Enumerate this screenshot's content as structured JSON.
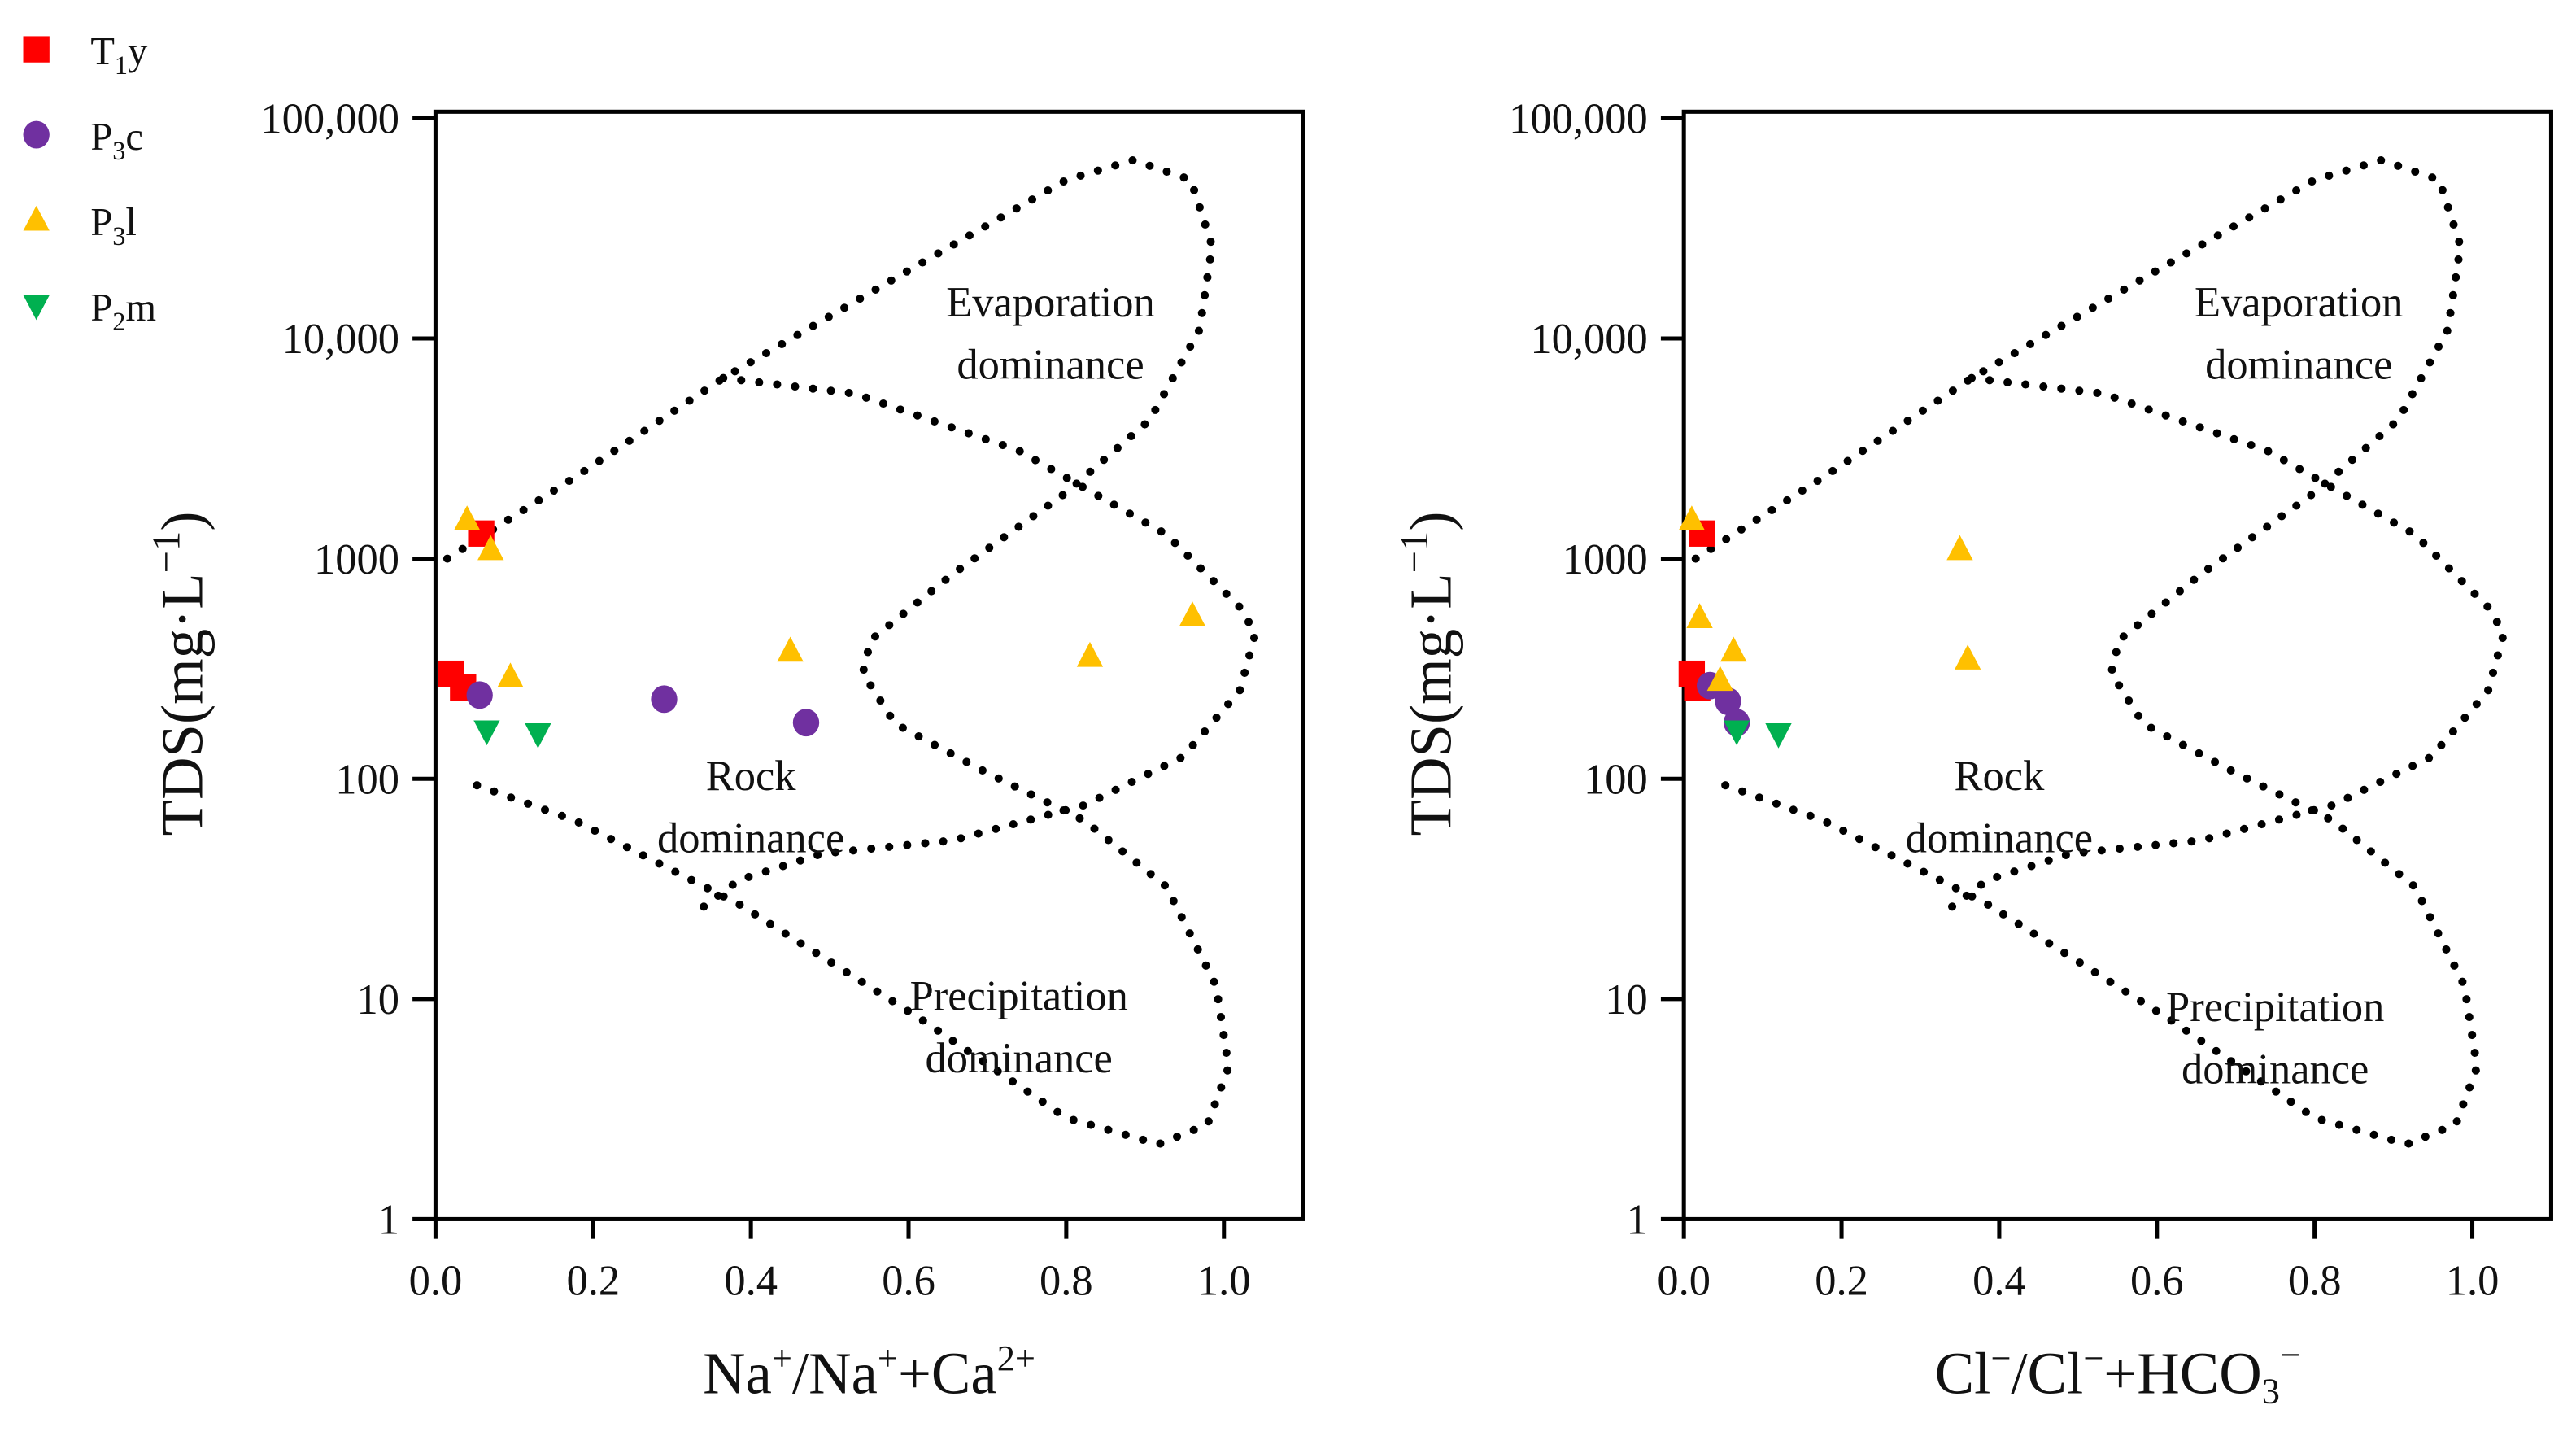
{
  "chart_data": {
    "type": "scatter",
    "legend_placement": "top-left",
    "legend": [
      {
        "id": "T1y",
        "base": "T",
        "sub": "1",
        "suffix": "y",
        "color": "#ff0000",
        "marker": "square"
      },
      {
        "id": "P3c",
        "base": "P",
        "sub": "3",
        "suffix": "c",
        "color": "#7030a0",
        "marker": "circle"
      },
      {
        "id": "P3l",
        "base": "P",
        "sub": "3",
        "suffix": "l",
        "color": "#ffc000",
        "marker": "triangle-up"
      },
      {
        "id": "P2m",
        "base": "P",
        "sub": "2",
        "suffix": "m",
        "color": "#00b050",
        "marker": "triangle-down"
      }
    ],
    "boundary_style": "dotted",
    "panels": [
      {
        "xlabel": {
          "main": "Na",
          "sup1": "+",
          "mid": "/Na",
          "sup2": "+",
          "plus": "+Ca",
          "sup3": "2+"
        },
        "ylabel": {
          "main": "TDS(mg·L",
          "sup": "−1",
          "close": ")"
        },
        "xlim": [
          0,
          1.1
        ],
        "ylim": [
          1,
          100000
        ],
        "yscale": "log",
        "xticks": [
          "0.0",
          "0.2",
          "0.4",
          "0.6",
          "0.8",
          "1.0"
        ],
        "yticks": [
          "1",
          "10",
          "100",
          "1000",
          "10,000",
          "100,000"
        ],
        "annotations": [
          {
            "lines": [
              "Evaporation",
              "dominance"
            ],
            "x": 0.78,
            "log10y": 4.1
          },
          {
            "lines": [
              "Rock",
              "dominance"
            ],
            "x": 0.4,
            "log10y": 1.95
          },
          {
            "lines": [
              "Precipitation",
              "dominance"
            ],
            "x": 0.74,
            "log10y": 0.95
          }
        ],
        "series": {
          "T1y": [
            [
              0.058,
              1300
            ],
            [
              0.02,
              300
            ],
            [
              0.035,
              260
            ]
          ],
          "P3c": [
            [
              0.056,
              240
            ],
            [
              0.29,
              230
            ],
            [
              0.47,
              180
            ]
          ],
          "P3l": [
            [
              0.04,
              1500
            ],
            [
              0.07,
              1100
            ],
            [
              0.095,
              290
            ],
            [
              0.45,
              380
            ],
            [
              0.83,
              360
            ],
            [
              0.96,
              550
            ]
          ],
          "P2m": [
            [
              0.065,
              165
            ],
            [
              0.13,
              160
            ]
          ]
        }
      },
      {
        "xlabel": {
          "main": "Cl",
          "sup1": "−",
          "mid": "/Cl",
          "sup2": "−",
          "plus": "+HCO",
          "sub": "3",
          "sup3": "−"
        },
        "ylabel": {
          "main": "TDS(mg·L",
          "sup": "−1",
          "close": ")"
        },
        "xlim": [
          0,
          1.1
        ],
        "ylim": [
          1,
          100000
        ],
        "yscale": "log",
        "xticks": [
          "0.0",
          "0.2",
          "0.4",
          "0.6",
          "0.8",
          "1.0"
        ],
        "yticks": [
          "1",
          "10",
          "100",
          "1000",
          "10,000",
          "100,000"
        ],
        "annotations": [
          {
            "lines": [
              "Evaporation",
              "dominance"
            ],
            "x": 0.78,
            "log10y": 4.1
          },
          {
            "lines": [
              "Rock",
              "dominance"
            ],
            "x": 0.4,
            "log10y": 1.95
          },
          {
            "lines": [
              "Precipitation",
              "dominance"
            ],
            "x": 0.75,
            "log10y": 0.9
          }
        ],
        "series": {
          "T1y": [
            [
              0.023,
              1300
            ],
            [
              0.01,
              300
            ],
            [
              0.017,
              260
            ]
          ],
          "P3c": [
            [
              0.033,
              265
            ],
            [
              0.056,
              225
            ],
            [
              0.067,
              180
            ]
          ],
          "P3l": [
            [
              0.01,
              1500
            ],
            [
              0.02,
              540
            ],
            [
              0.063,
              380
            ],
            [
              0.046,
              280
            ],
            [
              0.35,
              1100
            ],
            [
              0.36,
              350
            ]
          ],
          "P2m": [
            [
              0.067,
              165
            ],
            [
              0.12,
              160
            ]
          ]
        }
      }
    ],
    "boundary_curves_log10": {
      "outer": [
        [
          0.015,
          3.0
        ],
        [
          0.177,
          3.37
        ],
        [
          0.365,
          3.82
        ],
        [
          0.615,
          4.34
        ],
        [
          0.8,
          4.72
        ],
        [
          0.885,
          4.81
        ],
        [
          0.958,
          4.72
        ],
        [
          0.985,
          4.42
        ],
        [
          0.969,
          4.04
        ],
        [
          0.906,
          3.63
        ],
        [
          0.8,
          3.3
        ],
        [
          0.656,
          2.93
        ],
        [
          0.552,
          2.63
        ],
        [
          0.542,
          2.48
        ],
        [
          0.583,
          2.25
        ],
        [
          0.698,
          2.03
        ],
        [
          0.823,
          1.81
        ],
        [
          0.927,
          1.51
        ],
        [
          0.99,
          1.06
        ],
        [
          1.006,
          0.69
        ],
        [
          0.979,
          0.43
        ],
        [
          0.917,
          0.34
        ],
        [
          0.8,
          0.46
        ],
        [
          0.615,
          0.91
        ],
        [
          0.385,
          1.43
        ],
        [
          0.177,
          1.81
        ],
        [
          0.0375,
          1.99
        ]
      ],
      "inner": [
        [
          0.365,
          3.82
        ],
        [
          0.531,
          3.75
        ],
        [
          0.74,
          3.49
        ],
        [
          0.927,
          3.11
        ],
        [
          1.02,
          2.78
        ],
        [
          1.04,
          2.66
        ],
        [
          1.02,
          2.4
        ],
        [
          0.948,
          2.1
        ],
        [
          0.823,
          1.88
        ],
        [
          0.656,
          1.72
        ],
        [
          0.49,
          1.66
        ],
        [
          0.385,
          1.54
        ],
        [
          0.333,
          1.4
        ]
      ]
    }
  }
}
